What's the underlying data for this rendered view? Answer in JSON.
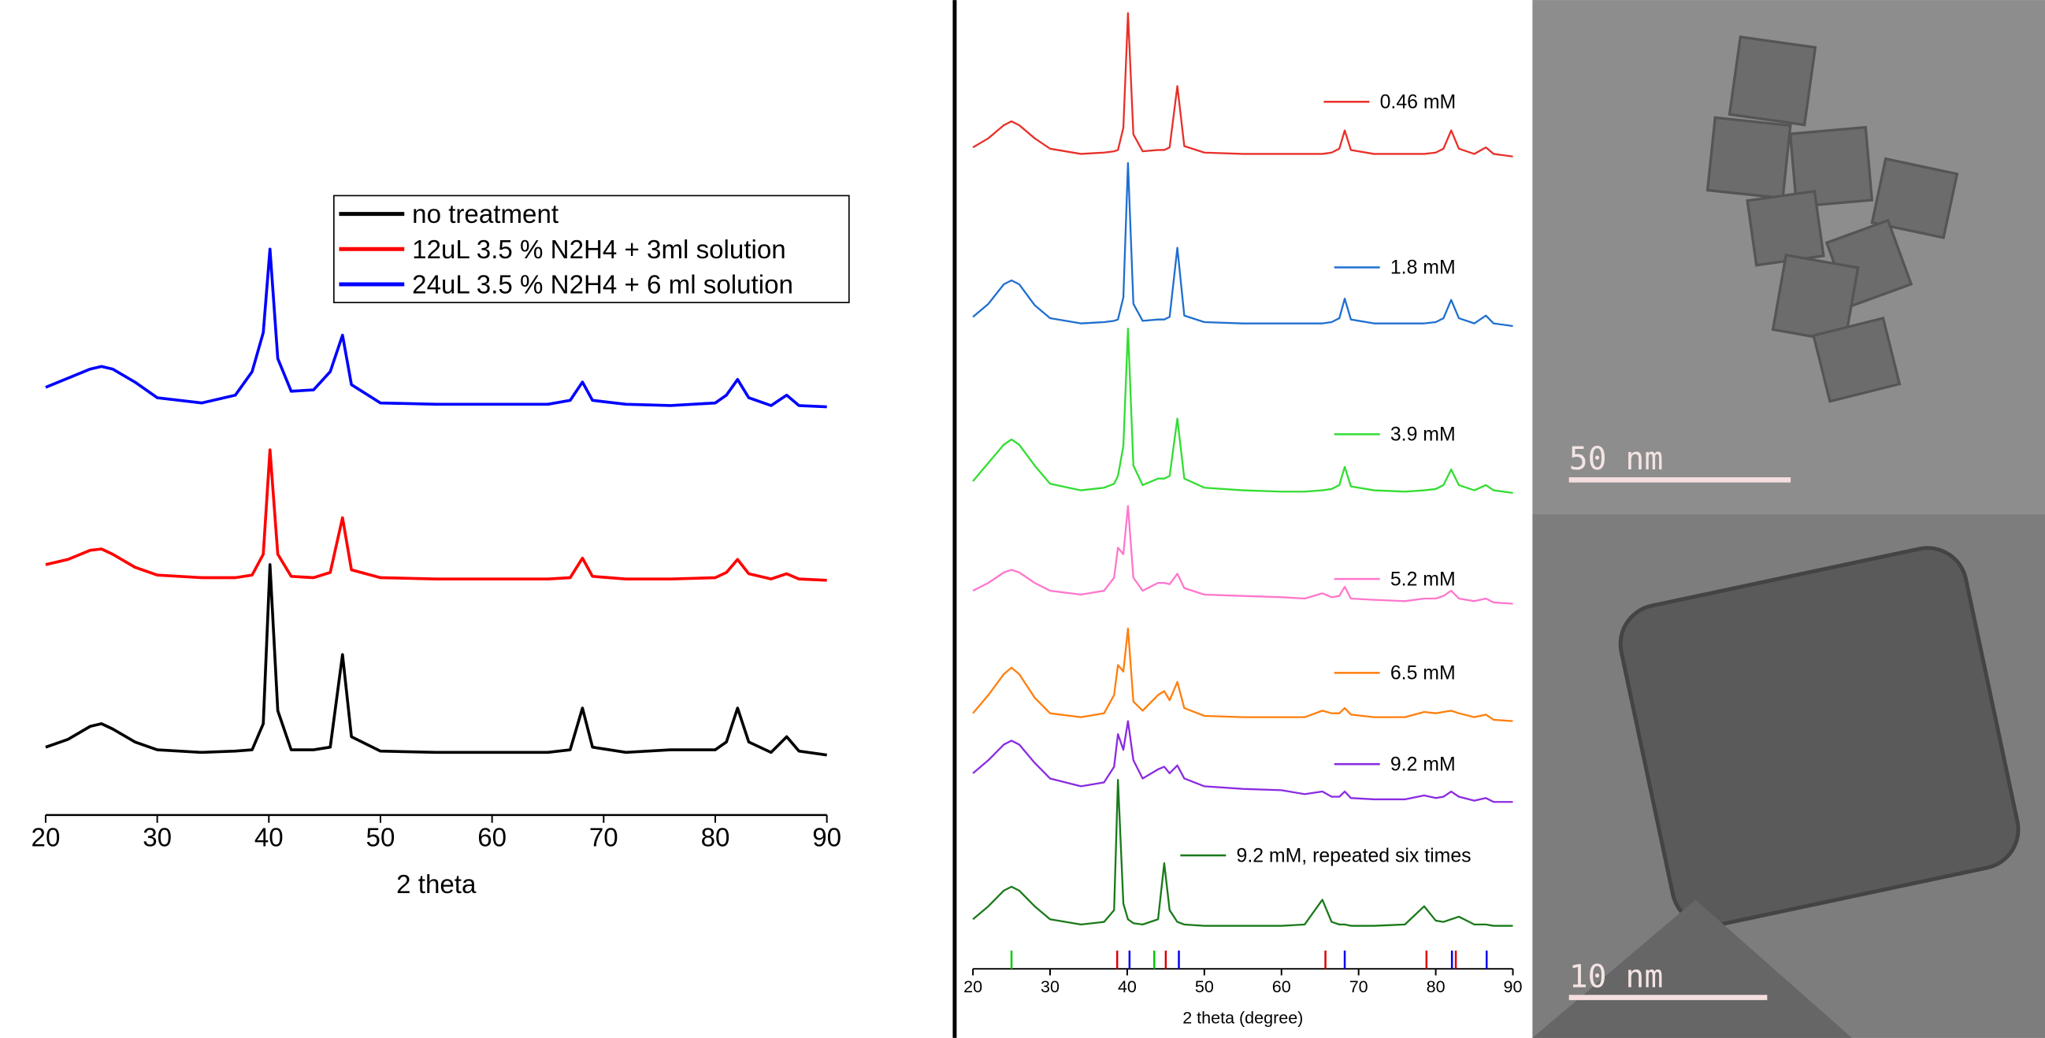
{
  "chart_data": [
    {
      "type": "line",
      "xlabel": "2 theta",
      "x": [
        20,
        22,
        24,
        25,
        26,
        28,
        30,
        34,
        37,
        38.5,
        39.5,
        40.1,
        40.8,
        42,
        44,
        45.5,
        46.6,
        47.4,
        50,
        55,
        60,
        65,
        67,
        68.1,
        69,
        72,
        76,
        80,
        81,
        82,
        83,
        85,
        86.4,
        87.5,
        90
      ],
      "xlim": [
        20,
        90
      ],
      "xticks": [
        20,
        30,
        40,
        50,
        60,
        70,
        80,
        90
      ],
      "ylim": [
        0,
        600
      ],
      "legend": "top-right",
      "series": [
        {
          "name": "no treatment",
          "color": "#000000",
          "values": [
            52,
            58,
            68,
            70,
            66,
            56,
            50,
            48,
            49,
            50,
            70,
            192,
            80,
            50,
            50,
            52,
            123,
            60,
            49,
            48,
            48,
            48,
            50,
            82,
            52,
            48,
            50,
            50,
            56,
            82,
            56,
            48,
            60,
            49,
            46
          ]
        },
        {
          "name": "12uL 3.5 % N2H4 + 3ml solution",
          "color": "#ff0000",
          "values": [
            192,
            196,
            203,
            204,
            200,
            190,
            184,
            182,
            182,
            184,
            200,
            280,
            200,
            183,
            182,
            186,
            228,
            188,
            182,
            181,
            181,
            181,
            182,
            197,
            183,
            181,
            181,
            182,
            186,
            196,
            185,
            181,
            185,
            181,
            180
          ]
        },
        {
          "name": "24uL 3.5 % N2H4 + 6 ml solution",
          "color": "#0000ff",
          "values": [
            328,
            335,
            342,
            344,
            342,
            332,
            320,
            316,
            322,
            340,
            370,
            434,
            350,
            325,
            326,
            340,
            368,
            330,
            316,
            315,
            315,
            315,
            318,
            332,
            318,
            315,
            314,
            316,
            322,
            334,
            320,
            314,
            322,
            314,
            313
          ]
        }
      ]
    },
    {
      "type": "line",
      "xlabel": "2 theta (degree)",
      "x": [
        20,
        22,
        24,
        25,
        26,
        28,
        30,
        34,
        37,
        38.3,
        38.8,
        39.5,
        40.1,
        40.8,
        42,
        44,
        44.8,
        45.5,
        46.5,
        47.4,
        50,
        55,
        60,
        63,
        65.3,
        66.5,
        67.5,
        68.2,
        69,
        72,
        76,
        78.5,
        80,
        81,
        82,
        83,
        85,
        86.5,
        87.5,
        90
      ],
      "xlim": [
        20,
        90
      ],
      "xticks": [
        20,
        30,
        40,
        50,
        60,
        70,
        80,
        90
      ],
      "ylim": [
        0,
        740
      ],
      "series": [
        {
          "name": "0.46 mM",
          "color": "#e8302a",
          "values": [
            630,
            637,
            647,
            650,
            647,
            637,
            629,
            625,
            626,
            627,
            628,
            645,
            733,
            640,
            627,
            628,
            628,
            630,
            677,
            631,
            626,
            625,
            625,
            625,
            625,
            626,
            629,
            643,
            628,
            625,
            625,
            625,
            626,
            629,
            643,
            629,
            625,
            630,
            625,
            623
          ]
        },
        {
          "name": "1.8 mM",
          "color": "#1f6fd0",
          "values": [
            500,
            510,
            525,
            528,
            525,
            509,
            499,
            495,
            496,
            497,
            498,
            515,
            618,
            510,
            497,
            498,
            498,
            500,
            553,
            501,
            496,
            495,
            495,
            495,
            495,
            496,
            499,
            514,
            498,
            495,
            495,
            495,
            496,
            499,
            513,
            499,
            495,
            501,
            495,
            493
          ]
        },
        {
          "name": "3.9 mM",
          "color": "#33dd33",
          "values": [
            374,
            388,
            402,
            406,
            402,
            386,
            372,
            367,
            369,
            372,
            378,
            401,
            491,
            386,
            371,
            376,
            376,
            378,
            422,
            376,
            369,
            367,
            366,
            366,
            367,
            368,
            371,
            385,
            370,
            367,
            366,
            367,
            368,
            371,
            383,
            371,
            367,
            371,
            367,
            365
          ]
        },
        {
          "name": "5.2 mM",
          "color": "#ff77cc",
          "values": [
            290,
            296,
            304,
            306,
            304,
            296,
            290,
            287,
            290,
            300,
            323,
            318,
            355,
            300,
            290,
            296,
            296,
            295,
            303,
            292,
            287,
            286,
            285,
            284,
            288,
            285,
            286,
            293,
            284,
            283,
            282,
            284,
            284,
            286,
            290,
            284,
            282,
            284,
            281,
            280
          ]
        },
        {
          "name": "6.5 mM",
          "color": "#ff7f0e",
          "values": [
            196,
            210,
            226,
            231,
            226,
            208,
            196,
            193,
            196,
            210,
            233,
            228,
            261,
            205,
            198,
            210,
            213,
            206,
            220,
            200,
            194,
            193,
            193,
            193,
            198,
            196,
            196,
            200,
            195,
            193,
            193,
            197,
            196,
            197,
            198,
            196,
            193,
            195,
            191,
            190
          ]
        },
        {
          "name": "9.2 mM",
          "color": "#8a2be2",
          "values": [
            150,
            160,
            172,
            175,
            172,
            158,
            146,
            140,
            143,
            155,
            180,
            168,
            190,
            160,
            146,
            153,
            155,
            150,
            156,
            146,
            140,
            138,
            137,
            134,
            136,
            132,
            132,
            136,
            131,
            130,
            130,
            133,
            131,
            132,
            136,
            132,
            129,
            131,
            128,
            128
          ]
        },
        {
          "name": "9.2 mM, repeated six times",
          "color": "#1a7a1a",
          "values": [
            38,
            48,
            60,
            63,
            60,
            48,
            38,
            34,
            36,
            45,
            145,
            50,
            38,
            35,
            34,
            38,
            81,
            45,
            36,
            34,
            33,
            33,
            33,
            34,
            53,
            36,
            34,
            34,
            33,
            33,
            34,
            48,
            37,
            36,
            38,
            40,
            34,
            34,
            33,
            33
          ]
        }
      ],
      "reference_markers": [
        {
          "color": "#00cc00",
          "x": [
            25,
            43.5
          ]
        },
        {
          "color": "#dd0000",
          "x": [
            38.7,
            45,
            65.7,
            78.8,
            82.6
          ]
        },
        {
          "color": "#0000ee",
          "x": [
            40.3,
            46.7,
            68.2,
            82.1,
            86.6
          ]
        }
      ]
    }
  ],
  "images": [
    {
      "scale_bar": "50 nm"
    },
    {
      "scale_bar": "10 nm"
    }
  ]
}
